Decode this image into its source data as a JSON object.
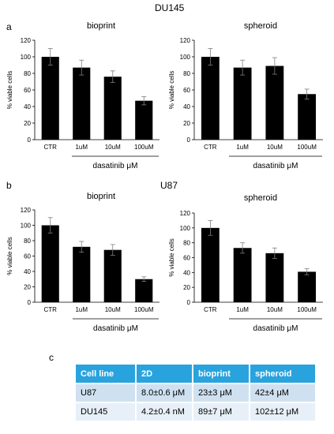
{
  "sections": [
    {
      "title": "DU145",
      "letter": "a"
    },
    {
      "title": "U87",
      "letter": "b"
    }
  ],
  "table_letter": "c",
  "chart_data": [
    {
      "type": "bar",
      "title": "bioprint",
      "ylabel": "% viable cells",
      "xlabel": "dasatinib μM",
      "categories": [
        "CTR",
        "1uM",
        "10uM",
        "100uM"
      ],
      "values": [
        100,
        87,
        76,
        47
      ],
      "errors": [
        10,
        9,
        7,
        5
      ],
      "ylim": [
        0,
        120
      ],
      "yticks": [
        0,
        20,
        40,
        60,
        80,
        100,
        120
      ],
      "grid": false
    },
    {
      "type": "bar",
      "title": "spheroid",
      "ylabel": "% viable cells",
      "xlabel": "dasatinib μM",
      "categories": [
        "CTR",
        "1uM",
        "10uM",
        "100uM"
      ],
      "values": [
        100,
        87,
        89,
        55
      ],
      "errors": [
        10,
        9,
        10,
        6
      ],
      "ylim": [
        0,
        120
      ],
      "yticks": [
        0,
        20,
        40,
        60,
        80,
        100,
        120
      ],
      "grid": false
    },
    {
      "type": "bar",
      "title": "bioprint",
      "ylabel": "% viable cells",
      "xlabel": "dasatinib μM",
      "categories": [
        "CTR",
        "1uM",
        "10uM",
        "100uM"
      ],
      "values": [
        100,
        72,
        68,
        30
      ],
      "errors": [
        10,
        7,
        7,
        3
      ],
      "ylim": [
        0,
        120
      ],
      "yticks": [
        0,
        20,
        40,
        60,
        80,
        100,
        120
      ],
      "grid": false
    },
    {
      "type": "bar",
      "title": "spheroid",
      "ylabel": "% viable cells",
      "xlabel": "dasatinib μM",
      "categories": [
        "CTR",
        "1uM",
        "10uM",
        "100uM"
      ],
      "values": [
        100,
        73,
        66,
        41
      ],
      "errors": [
        10,
        7,
        7,
        4
      ],
      "ylim": [
        0,
        120
      ],
      "yticks": [
        0,
        20,
        40,
        60,
        80,
        100,
        120
      ],
      "grid": false
    },
    {
      "type": "table",
      "columns": [
        "Cell line",
        "2D",
        "bioprint",
        "spheroid"
      ],
      "rows": [
        [
          "U87",
          "8.0±0.6 μM",
          "23±3 μM",
          "42±4 μM"
        ],
        [
          "DU145",
          "4.2±0.4 nM",
          "89±7 μM",
          "102±12 μM"
        ]
      ]
    }
  ]
}
